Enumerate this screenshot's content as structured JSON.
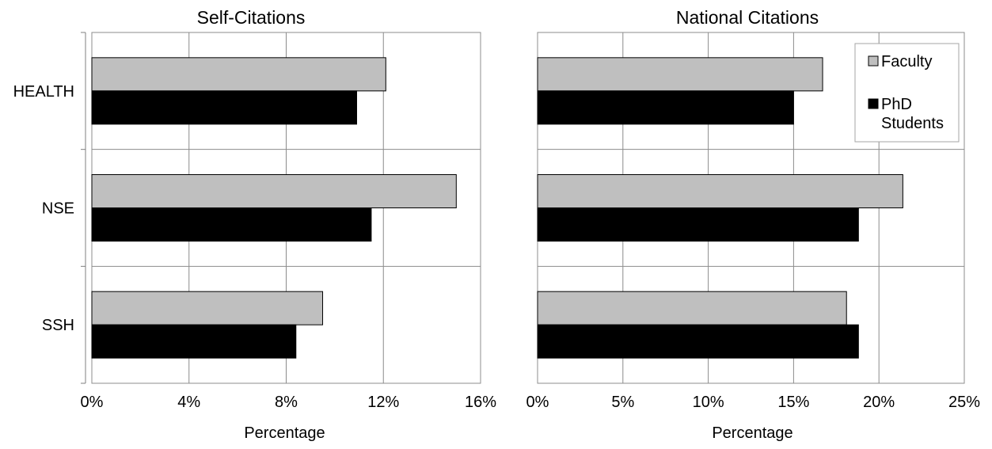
{
  "chart_data": [
    {
      "type": "bar",
      "orientation": "horizontal",
      "title": "Self-Citations",
      "xlabel": "Percentage",
      "ylabel": "",
      "categories": [
        "HEALTH",
        "NSE",
        "SSH"
      ],
      "series": [
        {
          "name": "Faculty",
          "values": [
            12.1,
            15.0,
            9.5
          ],
          "color": "#bfbfbf"
        },
        {
          "name": "PhD Students",
          "values": [
            10.9,
            11.5,
            8.4
          ],
          "color": "#000000"
        }
      ],
      "xlim": [
        0,
        16
      ],
      "ticks": [
        0,
        4,
        8,
        12,
        16
      ],
      "tick_labels": [
        "0%",
        "4%",
        "8%",
        "12%",
        "16%"
      ],
      "grid": true,
      "legend": false
    },
    {
      "type": "bar",
      "orientation": "horizontal",
      "title": "National Citations",
      "xlabel": "Percentage",
      "ylabel": "",
      "categories": [
        "HEALTH",
        "NSE",
        "SSH"
      ],
      "series": [
        {
          "name": "Faculty",
          "values": [
            16.7,
            21.4,
            18.1
          ],
          "color": "#bfbfbf"
        },
        {
          "name": "PhD Students",
          "values": [
            15.0,
            18.8,
            18.8
          ],
          "color": "#000000"
        }
      ],
      "xlim": [
        0,
        25
      ],
      "ticks": [
        0,
        5,
        10,
        15,
        20,
        25
      ],
      "tick_labels": [
        "0%",
        "5%",
        "10%",
        "15%",
        "20%",
        "25%"
      ],
      "grid": true,
      "legend": true,
      "legend_position": "top-right"
    }
  ],
  "legend": {
    "items": [
      {
        "lines": [
          "Faculty"
        ],
        "color": "#bfbfbf"
      },
      {
        "lines": [
          "PhD",
          "Students"
        ],
        "color": "#000000"
      }
    ]
  }
}
